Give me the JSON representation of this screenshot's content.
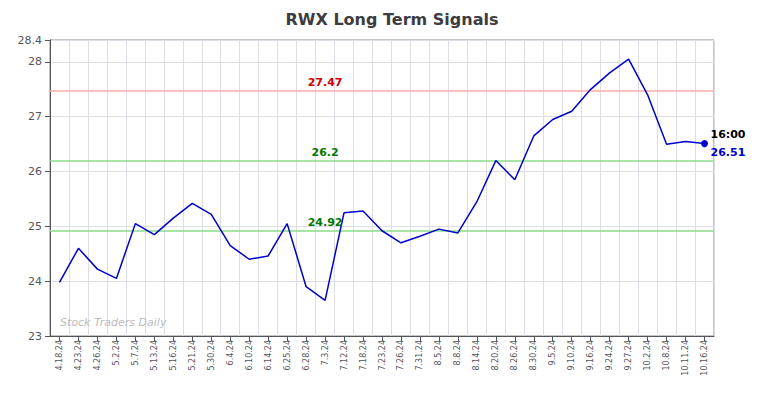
{
  "chart_data": {
    "type": "line",
    "title": "RWX Long Term Signals",
    "categories": [
      "4.18.24",
      "4.23.24",
      "4.26.24",
      "5.2.24",
      "5.7.24",
      "5.13.24",
      "5.16.24",
      "5.21.24",
      "5.30.24",
      "6.4.24",
      "6.10.24",
      "6.14.24",
      "6.25.24",
      "6.28.24",
      "7.3.24",
      "7.12.24",
      "7.18.24",
      "7.23.24",
      "7.26.24",
      "7.31.24",
      "8.5.24",
      "8.8.24",
      "8.14.24",
      "8.20.24",
      "8.26.24",
      "8.30.24",
      "9.5.24",
      "9.10.24",
      "9.16.24",
      "9.24.24",
      "9.27.24",
      "10.2.24",
      "10.8.24",
      "10.11.24",
      "10.16.24"
    ],
    "values": [
      23.98,
      24.6,
      24.22,
      24.05,
      25.05,
      24.85,
      25.15,
      25.42,
      25.22,
      24.65,
      24.4,
      24.46,
      25.05,
      23.9,
      23.65,
      25.25,
      25.28,
      24.92,
      24.7,
      24.82,
      24.95,
      24.88,
      25.45,
      26.2,
      25.85,
      26.65,
      26.95,
      27.1,
      27.5,
      27.8,
      28.05,
      27.4,
      26.5,
      26.55,
      26.51
    ],
    "color": "#0000cc",
    "ylim": [
      23,
      28.4
    ],
    "yticks": [
      23,
      24,
      25,
      26,
      27,
      28
    ],
    "grid": true,
    "reference_lines": [
      {
        "value": 27.47,
        "label": "27.47",
        "color": "#ffaaaa",
        "label_color": "#cc0000"
      },
      {
        "value": 26.2,
        "label": "26.2",
        "color": "#88dd88",
        "label_color": "#007700"
      },
      {
        "value": 24.92,
        "label": "24.92",
        "color": "#88dd88",
        "label_color": "#007700"
      }
    ],
    "annotations": [
      {
        "text": "16:00",
        "color": "#000000"
      },
      {
        "text": "26.51",
        "color": "#0000cc"
      }
    ],
    "watermark": {
      "text": "Stock Traders Daily",
      "color": "#bbbbbb"
    }
  }
}
